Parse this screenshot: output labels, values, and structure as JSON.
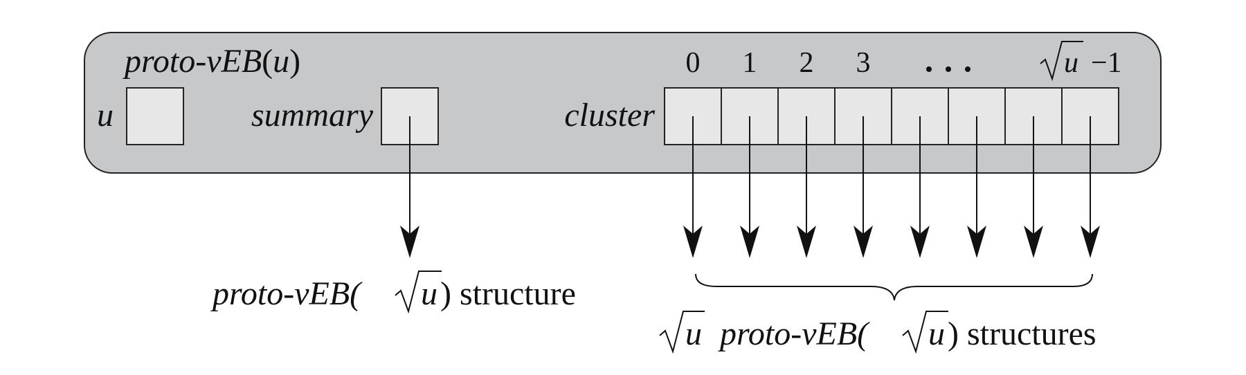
{
  "diagram": {
    "title": {
      "name": "proto-vEB",
      "arg": "u"
    },
    "fields": {
      "u_label": "u",
      "summary_label": "summary",
      "cluster_label": "cluster"
    },
    "cluster_indices": [
      "0",
      "1",
      "2",
      "3",
      "...",
      "",
      "",
      "−1"
    ],
    "sqrt_u_var": "u",
    "summary_caption": {
      "prefix": "proto-vEB(",
      "radicand": "u",
      "suffix": ") structure"
    },
    "clusters_caption": {
      "count_radicand": "u",
      "prefix": "proto-vEB(",
      "radicand": "u",
      "suffix": ") structures"
    },
    "colors": {
      "panel_fill": "#c7c8c9",
      "cell_fill": "#e6e7e6",
      "stroke": "#222222"
    }
  }
}
